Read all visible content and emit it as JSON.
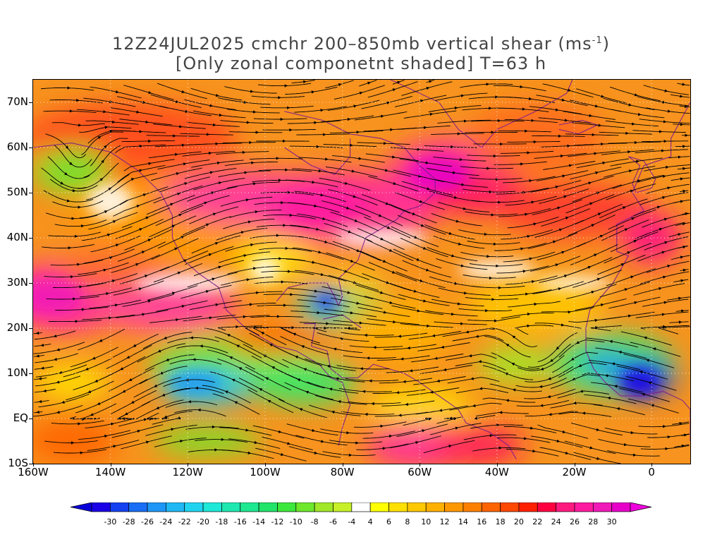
{
  "title": {
    "line1_prefix": "12Z24JUL2025 cmchr 200–850mb vertical shear (ms",
    "line1_sup": "-1",
    "line1_suffix": ")",
    "line2": "[Only zonal componetnt shaded] T=63 h"
  },
  "axes": {
    "lat_labels": [
      "70N",
      "60N",
      "50N",
      "40N",
      "30N",
      "20N",
      "10N",
      "EQ",
      "10S"
    ],
    "lat_values": [
      70,
      60,
      50,
      40,
      30,
      20,
      10,
      0,
      -10
    ],
    "lon_labels": [
      "160W",
      "140W",
      "120W",
      "100W",
      "80W",
      "60W",
      "40W",
      "20W",
      "0"
    ],
    "lon_values": [
      -160,
      -140,
      -120,
      -100,
      -80,
      -60,
      -40,
      -20,
      0
    ],
    "lon_range": [
      -160,
      10
    ],
    "lat_range": [
      -10,
      75
    ]
  },
  "colorbar": {
    "labels": [
      "-30",
      "-28",
      "-26",
      "-24",
      "-22",
      "-20",
      "-18",
      "-16",
      "-14",
      "-12",
      "-10",
      "-8",
      "-6",
      "-4",
      "4",
      "6",
      "8",
      "10",
      "12",
      "14",
      "16",
      "18",
      "20",
      "22",
      "24",
      "26",
      "28",
      "30"
    ],
    "colors": [
      "#1a00e6",
      "#1540f0",
      "#1a6ef5",
      "#1e96f7",
      "#1fb8f5",
      "#20d4f0",
      "#1ee8d8",
      "#1ee8b0",
      "#1ee890",
      "#22e46a",
      "#3de83c",
      "#6ee82a",
      "#a0e828",
      "#c8f028",
      "#ffffff",
      "#ffff00",
      "#ffe000",
      "#ffc800",
      "#ffb000",
      "#ff9800",
      "#ff8000",
      "#ff6400",
      "#ff4800",
      "#ff2000",
      "#ff0040",
      "#ff1a80",
      "#ff1aa0",
      "#f01ab8",
      "#e600c8"
    ],
    "under_color": "#0a00d8",
    "over_color": "#ee00dd"
  },
  "colors": {
    "background_shade": "#f7931e",
    "streamline": "#000000",
    "coastline": "#7a1a8c"
  }
}
